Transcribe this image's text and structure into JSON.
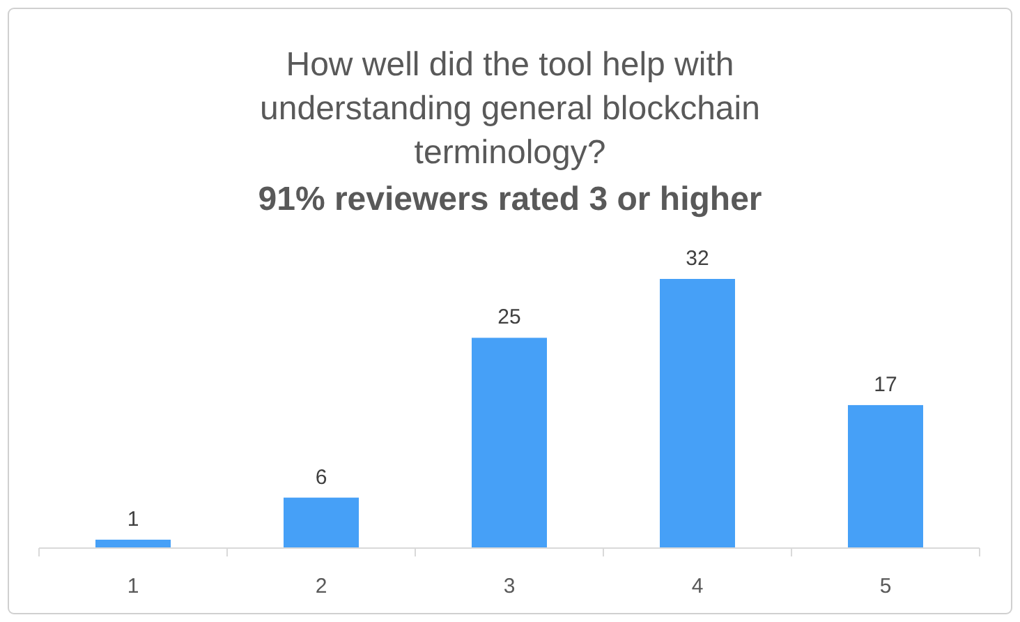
{
  "chart_data": {
    "type": "bar",
    "title": "How well did the tool help with understanding general blockchain terminology?",
    "subtitle": "91% reviewers rated 3 or higher",
    "categories": [
      "1",
      "2",
      "3",
      "4",
      "5"
    ],
    "values": [
      1,
      6,
      25,
      32,
      17
    ],
    "color": "#46a0f7",
    "data_labels": true
  }
}
